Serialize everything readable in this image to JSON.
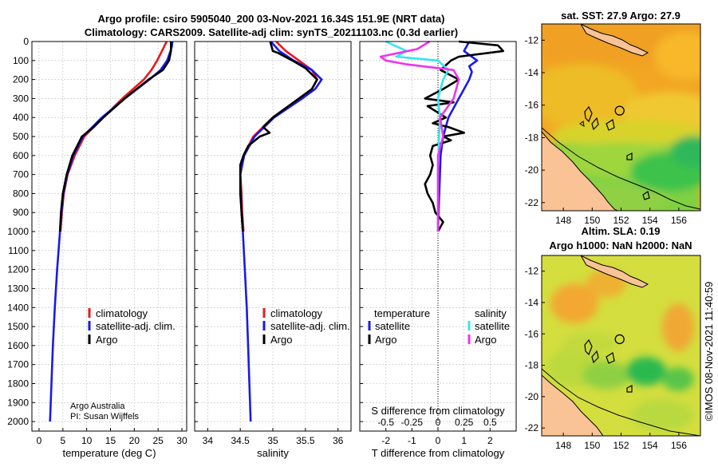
{
  "title": {
    "line1": "Argo profile: csiro 5905040_200 03-Nov-2021 16.34S 151.9E (NRT data)",
    "line2": "Climatology: CARS2009. Satellite-adj clim: synTS_20211103.nc (0.3d earlier)"
  },
  "depth_axis": {
    "ticks": [
      0,
      100,
      200,
      300,
      400,
      500,
      600,
      700,
      800,
      900,
      1000,
      1100,
      1200,
      1300,
      1400,
      1500,
      1600,
      1700,
      1800,
      1900,
      2000
    ],
    "ylim": [
      2050,
      0
    ]
  },
  "colors": {
    "climatology": "#e8191a",
    "satellite": "#1a1ae8",
    "argo": "#000000",
    "sat_sal": "#33e6ee",
    "argo_sal": "#ee33ee"
  },
  "chart_data": [
    {
      "name": "temperature-panel",
      "type": "line",
      "xlabel": "temperature (deg C)",
      "xlim": [
        -1.5,
        31
      ],
      "xticks": [
        0,
        5,
        10,
        15,
        20,
        25,
        30
      ],
      "legend": [
        "climatology",
        "satellite-adj. clim.",
        "Argo"
      ],
      "series": [
        {
          "name": "climatology",
          "y": [
            0,
            50,
            100,
            150,
            200,
            300,
            400,
            500,
            600,
            700,
            800,
            900,
            1000
          ],
          "x": [
            26.8,
            25.8,
            24.8,
            23.6,
            22,
            17.5,
            13.5,
            9.5,
            7.5,
            6,
            5.2,
            4.8,
            4.5
          ]
        },
        {
          "name": "satellite-adj. clim.",
          "y": [
            0,
            25,
            50,
            100,
            150,
            200,
            300,
            400,
            500,
            600,
            700,
            800,
            900,
            1000,
            1200,
            1400,
            1600,
            1800,
            2000
          ],
          "x": [
            28,
            27.9,
            27.6,
            26.9,
            25.5,
            23.2,
            18,
            13.2,
            9.2,
            7.2,
            5.9,
            5.1,
            4.7,
            4.4,
            3.8,
            3.3,
            2.9,
            2.6,
            2.3
          ]
        },
        {
          "name": "Argo",
          "y": [
            0,
            50,
            100,
            150,
            200,
            300,
            400,
            450,
            500,
            550,
            600,
            700,
            800,
            900,
            1000
          ],
          "x": [
            27.7,
            27.7,
            27.3,
            26,
            23,
            18,
            13.5,
            11.5,
            9,
            8,
            7,
            5.8,
            5,
            4.6,
            4.4
          ]
        }
      ]
    },
    {
      "name": "salinity-panel",
      "type": "line",
      "xlabel": "salinity",
      "xlim": [
        33.8,
        36.2
      ],
      "xticks": [
        34,
        34.5,
        35,
        35.5,
        36
      ],
      "xtick_labels": [
        "34",
        "34.5",
        "35",
        "35.5",
        "36"
      ],
      "legend": [
        "climatology",
        "satellite-adj. clim.",
        "Argo"
      ],
      "series": [
        {
          "name": "climatology",
          "y": [
            0,
            50,
            100,
            150,
            200,
            250,
            300,
            400,
            500,
            600,
            700,
            800,
            900,
            1000
          ],
          "x": [
            35.05,
            35.2,
            35.4,
            35.6,
            35.68,
            35.6,
            35.4,
            35.0,
            34.7,
            34.55,
            34.5,
            34.52,
            34.53,
            34.55
          ]
        },
        {
          "name": "satellite-adj. clim.",
          "y": [
            0,
            50,
            100,
            150,
            200,
            250,
            300,
            400,
            500,
            600,
            700,
            800,
            900,
            1000,
            1200,
            1400,
            1600,
            1800,
            2000
          ],
          "x": [
            34.97,
            35.1,
            35.32,
            35.6,
            35.75,
            35.65,
            35.45,
            35.02,
            34.72,
            34.56,
            34.5,
            34.51,
            34.52,
            34.54,
            34.57,
            34.6,
            34.62,
            34.64,
            34.66
          ]
        },
        {
          "name": "Argo",
          "y": [
            0,
            50,
            60,
            100,
            140,
            180,
            200,
            250,
            300,
            400,
            450,
            480,
            500,
            550,
            600,
            650,
            700,
            800,
            900,
            1000
          ],
          "x": [
            34.96,
            35.0,
            35.08,
            35.3,
            35.5,
            35.62,
            35.68,
            35.6,
            35.4,
            35.0,
            34.85,
            34.95,
            34.8,
            34.62,
            34.55,
            34.5,
            34.5,
            34.5,
            34.52,
            34.54
          ]
        }
      ]
    },
    {
      "name": "difference-panel",
      "type": "line",
      "xlabel": "T difference from climatology",
      "xlabel2": "S difference from climatology",
      "xlim": [
        -3,
        3
      ],
      "xticks": [
        -2,
        -1,
        0,
        1,
        2
      ],
      "xtick_labels": [
        "-2",
        "-1",
        "0",
        "1",
        "2"
      ],
      "s_ticks": [
        -0.5,
        -0.25,
        0,
        0.25,
        0.5
      ],
      "s_tick_labels": [
        "-0.5",
        "-0.25",
        "0",
        "0.25",
        "0.5"
      ],
      "legend_heads": [
        "temperature",
        "salinity"
      ],
      "legend": [
        "satellite",
        "Argo",
        "satellite",
        "Argo"
      ],
      "series": [
        {
          "name": "T satellite",
          "y": [
            0,
            50,
            100,
            130,
            160,
            200,
            250,
            300,
            400,
            500,
            600,
            800,
            1000
          ],
          "x": [
            1.2,
            1.0,
            1.5,
            1.2,
            1.3,
            1.2,
            1.0,
            0.8,
            0.4,
            0.2,
            0.1,
            0.05,
            0
          ]
        },
        {
          "name": "T Argo",
          "y": [
            0,
            20,
            50,
            80,
            100,
            150,
            200,
            250,
            300,
            320,
            340,
            400,
            430,
            450,
            480,
            500,
            520,
            550,
            600,
            650,
            700,
            750,
            800,
            850,
            900,
            950,
            1000
          ],
          "x": [
            0.8,
            2.3,
            2.5,
            0.8,
            0.5,
            0.1,
            0.8,
            0.2,
            -0.5,
            0.6,
            -0.4,
            0.3,
            -0.2,
            0.4,
            1.0,
            0.2,
            0.5,
            -0.2,
            -0.3,
            -0.2,
            -0.3,
            -0.5,
            -0.4,
            -0.2,
            -0.1,
            0.2,
            0
          ]
        },
        {
          "name": "S satellite",
          "y": [
            0,
            50,
            80,
            100,
            150,
            200,
            300,
            400,
            500,
            700,
            1000
          ],
          "x": [
            -0.5,
            -0.3,
            -0.4,
            0.0,
            0.1,
            0.05,
            0.0,
            0.02,
            0.01,
            0.0,
            0
          ]
        },
        {
          "name": "S Argo",
          "y": [
            0,
            40,
            80,
            100,
            120,
            150,
            200,
            300,
            400,
            500,
            600,
            800,
            1000
          ],
          "x": [
            -0.08,
            -0.2,
            -0.55,
            -0.5,
            -0.3,
            0.15,
            0.2,
            0.15,
            0.02,
            0.05,
            0.0,
            0.0,
            0
          ]
        }
      ]
    }
  ],
  "credit": {
    "line1": "Argo Australia",
    "line2": "PI: Susan Wijffels"
  },
  "maps": {
    "top_title": "sat. SST: 27.9 Argo: 27.9",
    "bottom_title1": "Altim. SLA: 0.19",
    "bottom_title2": "Argo h1000: NaN h2000: NaN",
    "lat_ticks": [
      -12,
      -14,
      -16,
      -18,
      -20,
      -22
    ],
    "lon_ticks": [
      148,
      150,
      152,
      154,
      156
    ],
    "lon_range": [
      146.5,
      157.5
    ],
    "lat_range": [
      -11,
      -22.5
    ],
    "profile": {
      "lon": 151.9,
      "lat": -16.34
    }
  },
  "timestamp": "©IMOS 08-Nov-2021 11:40:59"
}
